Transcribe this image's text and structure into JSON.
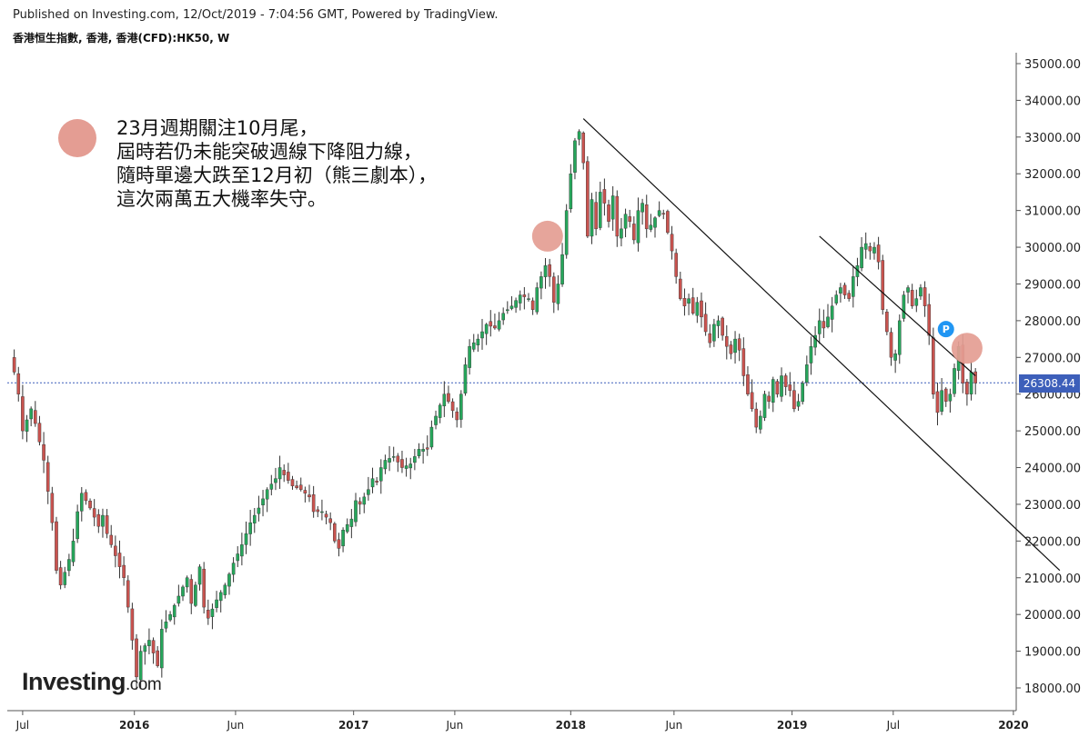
{
  "header": {
    "published": "Published on Investing.com, 12/Oct/2019 - 7:04:56 GMT, Powered by TradingView.",
    "symbol": "香港恒生指數, 香港, 香港(CFD):HK50, W"
  },
  "annotation": {
    "line1": "23月週期關注10月尾，",
    "line2": "屆時若仍未能突破週線下降阻力線，",
    "line3": "隨時單邊大跌至12月初（熊三劇本），",
    "line4": "這次兩萬五大機率失守。"
  },
  "logo": {
    "name": "Investing",
    "suffix": ".com"
  },
  "marker": {
    "label": "P"
  },
  "colors": {
    "up": "#26a65b",
    "down": "#c9534f",
    "wick": "#333333",
    "marker_circle": "#e49d93",
    "price_tag": "#3d5fba",
    "marker_p": "#2196f3"
  },
  "chart_data": {
    "type": "candlestick",
    "title": "香港恒生指數, 香港, 香港(CFD):HK50, W",
    "ylim": [
      17600,
      35300
    ],
    "y_ticks": [
      "35000.00",
      "34000.00",
      "33000.00",
      "32000.00",
      "31000.00",
      "30000.00",
      "29000.00",
      "28000.00",
      "27000.00",
      "26000.00",
      "25000.00",
      "24000.00",
      "23000.00",
      "22000.00",
      "21000.00",
      "20000.00",
      "19000.00",
      "18000.00"
    ],
    "y_tick_values": [
      35000,
      34000,
      33000,
      32000,
      31000,
      30000,
      29000,
      28000,
      27000,
      26000,
      25000,
      24000,
      23000,
      22000,
      21000,
      20000,
      19000,
      18000
    ],
    "x_ticks": [
      "Jul",
      "2016",
      "Jun",
      "2017",
      "Jun",
      "2018",
      "Jun",
      "2019",
      "Jul",
      "2020"
    ],
    "x_tick_weeks": [
      3,
      29.5,
      53.5,
      81.5,
      105.5,
      133,
      157.5,
      185.5,
      209.5,
      238
    ],
    "current_price": "26308.44",
    "current_price_value": 26308.44,
    "trendlines": [
      {
        "from": [
          136,
          33500
        ],
        "to": [
          249,
          21200
        ]
      },
      {
        "from": [
          192,
          30300
        ],
        "to": [
          229,
          26500
        ]
      }
    ],
    "highlight_points": [
      {
        "week": 127.5,
        "value": 30300
      },
      {
        "week": 227,
        "value": 27250
      }
    ],
    "marker_point": {
      "week": 222,
      "value": 27770
    },
    "anchors": [
      [
        0,
        27000
      ],
      [
        1,
        26600
      ],
      [
        2,
        26000
      ],
      [
        3,
        25000
      ],
      [
        5,
        25600
      ],
      [
        6,
        25200
      ],
      [
        8,
        24200
      ],
      [
        10,
        22500
      ],
      [
        11,
        21200
      ],
      [
        12,
        20800
      ],
      [
        14,
        21500
      ],
      [
        15,
        22000
      ],
      [
        16,
        22800
      ],
      [
        17,
        23300
      ],
      [
        19,
        22900
      ],
      [
        21,
        22400
      ],
      [
        22,
        22700
      ],
      [
        23,
        22200
      ],
      [
        25,
        21600
      ],
      [
        27,
        21000
      ],
      [
        28,
        20200
      ],
      [
        29,
        19300
      ],
      [
        30,
        18300
      ],
      [
        31,
        19000
      ],
      [
        33,
        19300
      ],
      [
        35,
        18600
      ],
      [
        36,
        19600
      ],
      [
        38,
        20000
      ],
      [
        40,
        20500
      ],
      [
        42,
        21000
      ],
      [
        43,
        20300
      ],
      [
        45,
        21300
      ],
      [
        46,
        20200
      ],
      [
        47,
        19900
      ],
      [
        49,
        20400
      ],
      [
        51,
        20800
      ],
      [
        53,
        21400
      ],
      [
        55,
        21900
      ],
      [
        57,
        22500
      ],
      [
        59,
        22900
      ],
      [
        61,
        23400
      ],
      [
        63,
        23700
      ],
      [
        64,
        24000
      ],
      [
        65,
        23800
      ],
      [
        67,
        23500
      ],
      [
        69,
        23400
      ],
      [
        71,
        23200
      ],
      [
        72,
        22800
      ],
      [
        74,
        22800
      ],
      [
        76,
        22500
      ],
      [
        77,
        22000
      ],
      [
        78,
        21800
      ],
      [
        79,
        22300
      ],
      [
        81,
        22600
      ],
      [
        82,
        23100
      ],
      [
        83,
        23000
      ],
      [
        85,
        23400
      ],
      [
        86,
        23700
      ],
      [
        87,
        23600
      ],
      [
        88,
        24000
      ],
      [
        89,
        24200
      ],
      [
        91,
        24300
      ],
      [
        93,
        24000
      ],
      [
        95,
        24100
      ],
      [
        97,
        24500
      ],
      [
        99,
        24500
      ],
      [
        100,
        25100
      ],
      [
        102,
        25700
      ],
      [
        103,
        26000
      ],
      [
        104,
        25800
      ],
      [
        106,
        25300
      ],
      [
        107,
        26000
      ],
      [
        108,
        26800
      ],
      [
        109,
        27300
      ],
      [
        111,
        27500
      ],
      [
        112,
        27700
      ],
      [
        113,
        27900
      ],
      [
        115,
        27800
      ],
      [
        117,
        28200
      ],
      [
        119,
        28400
      ],
      [
        121,
        28700
      ],
      [
        123,
        28600
      ],
      [
        124,
        28300
      ],
      [
        125,
        28900
      ],
      [
        126,
        29200
      ],
      [
        127,
        29500
      ],
      [
        128,
        29200
      ],
      [
        129,
        28500
      ],
      [
        130,
        29000
      ],
      [
        131,
        29800
      ],
      [
        132,
        31000
      ],
      [
        133,
        32000
      ],
      [
        134,
        32900
      ],
      [
        135,
        33150
      ],
      [
        136,
        32300
      ],
      [
        137,
        30300
      ],
      [
        138,
        31300
      ],
      [
        139,
        30500
      ],
      [
        140,
        31500
      ],
      [
        141,
        31200
      ],
      [
        142,
        30700
      ],
      [
        143,
        31400
      ],
      [
        144,
        30300
      ],
      [
        145,
        30500
      ],
      [
        146,
        30900
      ],
      [
        147,
        30700
      ],
      [
        148,
        30200
      ],
      [
        149,
        31000
      ],
      [
        150,
        31200
      ],
      [
        151,
        30500
      ],
      [
        152,
        30600
      ],
      [
        153,
        30800
      ],
      [
        154,
        31000
      ],
      [
        155,
        30900
      ],
      [
        156,
        30400
      ],
      [
        157,
        29900
      ],
      [
        158,
        29200
      ],
      [
        159,
        28600
      ],
      [
        160,
        28400
      ],
      [
        161,
        28600
      ],
      [
        162,
        28200
      ],
      [
        163,
        28500
      ],
      [
        164,
        28100
      ],
      [
        165,
        27700
      ],
      [
        166,
        27400
      ],
      [
        167,
        27900
      ],
      [
        168,
        28000
      ],
      [
        169,
        27600
      ],
      [
        170,
        27300
      ],
      [
        171,
        27100
      ],
      [
        172,
        27500
      ],
      [
        173,
        27200
      ],
      [
        174,
        26500
      ],
      [
        175,
        26000
      ],
      [
        176,
        25600
      ],
      [
        177,
        25100
      ],
      [
        178,
        25400
      ],
      [
        179,
        26000
      ],
      [
        180,
        25800
      ],
      [
        181,
        26400
      ],
      [
        182,
        26000
      ],
      [
        183,
        26500
      ],
      [
        184,
        26200
      ],
      [
        185,
        26100
      ],
      [
        186,
        25600
      ],
      [
        187,
        25800
      ],
      [
        188,
        26300
      ],
      [
        189,
        26800
      ],
      [
        190,
        27300
      ],
      [
        191,
        27600
      ],
      [
        192,
        28000
      ],
      [
        193,
        27800
      ],
      [
        194,
        28100
      ],
      [
        195,
        28400
      ],
      [
        196,
        28700
      ],
      [
        197,
        28900
      ],
      [
        198,
        28700
      ],
      [
        199,
        28600
      ],
      [
        200,
        29200
      ],
      [
        201,
        29500
      ],
      [
        202,
        30000
      ],
      [
        203,
        30100
      ],
      [
        204,
        29900
      ],
      [
        205,
        30000
      ],
      [
        206,
        29600
      ],
      [
        207,
        28300
      ],
      [
        208,
        27700
      ],
      [
        209,
        27000
      ],
      [
        210,
        27100
      ],
      [
        211,
        28000
      ],
      [
        212,
        28700
      ],
      [
        213,
        28900
      ],
      [
        214,
        28400
      ],
      [
        215,
        28600
      ],
      [
        216,
        28900
      ],
      [
        217,
        28400
      ],
      [
        218,
        27600
      ],
      [
        219,
        26000
      ],
      [
        220,
        25500
      ],
      [
        221,
        26100
      ],
      [
        222,
        25800
      ],
      [
        223,
        26000
      ],
      [
        224,
        26700
      ],
      [
        225,
        27300
      ],
      [
        226,
        26300
      ],
      [
        227,
        26000
      ],
      [
        228,
        26600
      ],
      [
        229,
        26300
      ]
    ]
  }
}
